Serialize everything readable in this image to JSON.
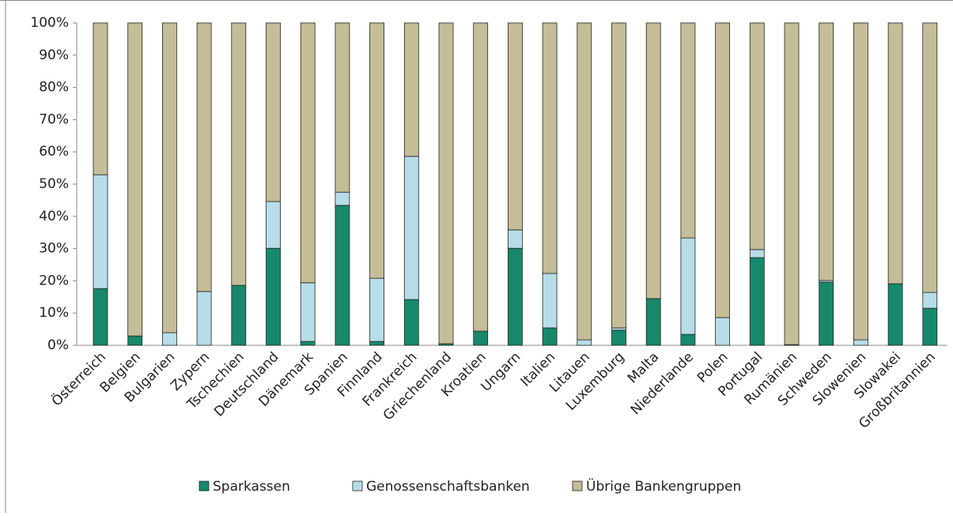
{
  "chart_data": {
    "type": "stacked_bar",
    "categories": [
      "Österreich",
      "Belgien",
      "Bulgarien",
      "Zypern",
      "Tschechien",
      "Deutschland",
      "Dänemark",
      "Spanien",
      "Finnland",
      "Frankreich",
      "Griechenland",
      "Kroatien",
      "Ungarn",
      "Italien",
      "Litauen",
      "Luxemburg",
      "Malta",
      "Niederlande",
      "Polen",
      "Portugal",
      "Rumänien",
      "Schweden",
      "Slowenien",
      "Slowakei",
      "Großbritannien"
    ],
    "series": [
      {
        "name": "Sparkassen",
        "color": "#17896a",
        "values": [
          17.6,
          2.9,
          0,
          0,
          18.6,
          30.1,
          1.2,
          43.4,
          1.2,
          14.2,
          0.5,
          4.4,
          30.1,
          5.4,
          0,
          4.7,
          14.5,
          3.4,
          0,
          27.2,
          0.2,
          19.6,
          0,
          19.1,
          11.5
        ]
      },
      {
        "name": "Genossenschaftsbanken",
        "color": "#b7dde8",
        "values": [
          35.3,
          0,
          3.9,
          16.7,
          0,
          14.5,
          18.2,
          4.1,
          19.6,
          44.4,
          0,
          0,
          5.7,
          16.9,
          1.7,
          0.7,
          0,
          29.9,
          8.6,
          2.5,
          0,
          0.5,
          1.7,
          0,
          4.9
        ]
      },
      {
        "name": "Übrige Bankengruppen",
        "color": "#c4bd97",
        "values": [
          47.1,
          97.1,
          96.1,
          83.3,
          81.4,
          55.4,
          80.6,
          52.5,
          79.2,
          41.4,
          99.5,
          95.6,
          64.2,
          77.7,
          98.3,
          94.6,
          85.5,
          66.7,
          91.4,
          70.3,
          99.8,
          79.9,
          98.3,
          80.9,
          83.6
        ]
      }
    ],
    "ylim": [
      0,
      100
    ],
    "yticks": [
      {
        "value": 0,
        "label": "0%"
      },
      {
        "value": 10,
        "label": "10%"
      },
      {
        "value": 20,
        "label": "20%"
      },
      {
        "value": 30,
        "label": "30%"
      },
      {
        "value": 40,
        "label": "40%"
      },
      {
        "value": 50,
        "label": "50%"
      },
      {
        "value": 60,
        "label": "60%"
      },
      {
        "value": 70,
        "label": "70%"
      },
      {
        "value": 80,
        "label": "80%"
      },
      {
        "value": 90,
        "label": "90%"
      },
      {
        "value": 100,
        "label": "100%"
      }
    ],
    "grid": false,
    "legend": "bottom"
  }
}
